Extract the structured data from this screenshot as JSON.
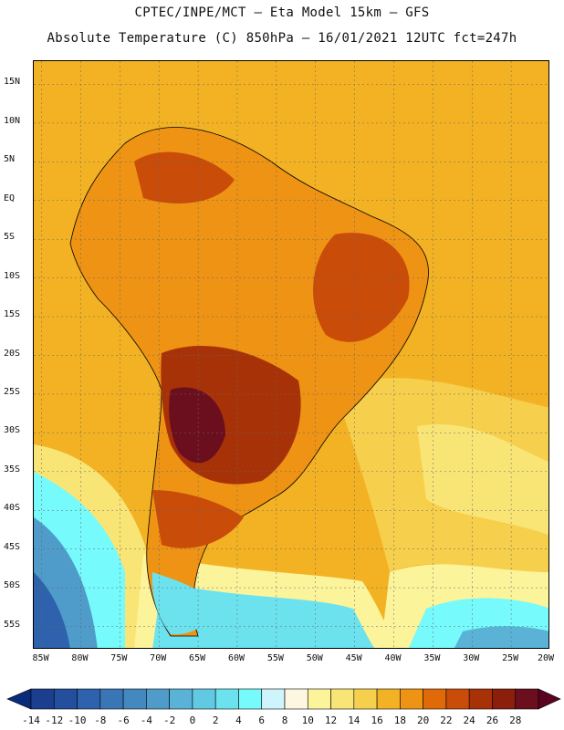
{
  "title_line1": "CPTEC/INPE/MCT –  Eta Model 15km – GFS",
  "title_line2": "Absolute Temperature (C) 850hPa – 16/01/2021 12UTC fct=247h",
  "map": {
    "lat_labels": [
      "15N",
      "10N",
      "5N",
      "EQ",
      "5S",
      "10S",
      "15S",
      "20S",
      "25S",
      "30S",
      "35S",
      "40S",
      "45S",
      "50S",
      "55S"
    ],
    "lon_labels": [
      "85W",
      "80W",
      "75W",
      "70W",
      "65W",
      "60W",
      "55W",
      "50W",
      "45W",
      "40W",
      "35W",
      "30W",
      "25W",
      "20W"
    ],
    "lat_range": [
      18,
      -58
    ],
    "lon_range": [
      -86,
      -20
    ]
  },
  "legend": {
    "values": [
      "-14",
      "-12",
      "-10",
      "-8",
      "-6",
      "-4",
      "-2",
      "0",
      "2",
      "4",
      "6",
      "8",
      "10",
      "12",
      "14",
      "16",
      "18",
      "20",
      "22",
      "24",
      "26",
      "28"
    ],
    "colors": [
      "#1b3f8e",
      "#234f9e",
      "#2e62ac",
      "#3a75b6",
      "#4488c0",
      "#4f9ccb",
      "#5ab2d7",
      "#62c9e3",
      "#6ce2ee",
      "#76fafb",
      "#cdf5fb",
      "#fdf6e0",
      "#fbf49a",
      "#f9e575",
      "#f6cf4d",
      "#f3b223",
      "#ee9313",
      "#e06a0a",
      "#c94c08",
      "#a83207",
      "#8b1f0c",
      "#6b0f1f"
    ],
    "low_color": "#0a2a7a",
    "high_color": "#5a0320"
  }
}
